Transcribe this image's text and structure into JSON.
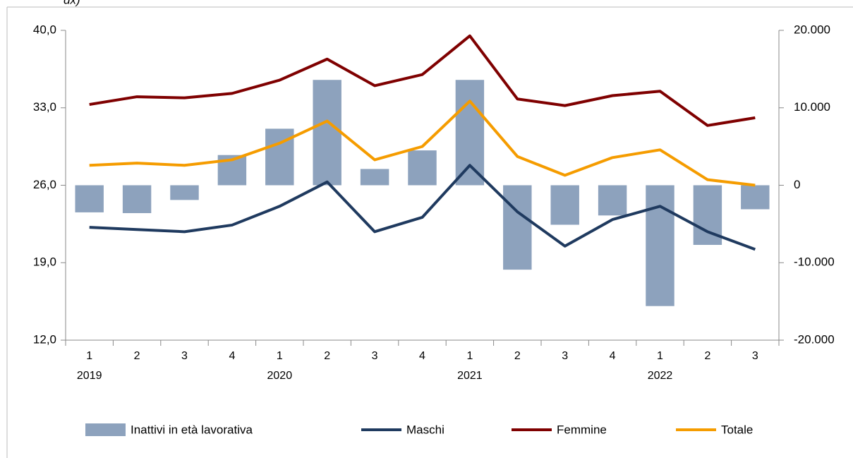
{
  "chart_data": {
    "type": "combo",
    "note": "dx)",
    "categories": [
      "1",
      "2",
      "3",
      "4",
      "1",
      "2",
      "3",
      "4",
      "1",
      "2",
      "3",
      "4",
      "1",
      "2",
      "3"
    ],
    "groups": [
      "2019",
      null,
      null,
      null,
      "2020",
      null,
      null,
      null,
      "2021",
      null,
      null,
      null,
      "2022",
      null,
      null
    ],
    "ylim": [
      12,
      40
    ],
    "yticks": [
      {
        "value": 12,
        "label": "12,0"
      },
      {
        "value": 19,
        "label": "19,0"
      },
      {
        "value": 26,
        "label": "26,0"
      },
      {
        "value": 33,
        "label": "33,0"
      },
      {
        "value": 40,
        "label": "40,0"
      }
    ],
    "y2lim": [
      -20000,
      20000
    ],
    "y2ticks": [
      {
        "value": -20000,
        "label": "-20.000"
      },
      {
        "value": -10000,
        "label": "-10.000"
      },
      0,
      {
        "value": 10000,
        "label": "10.000"
      },
      {
        "value": 20000,
        "label": "20.000"
      }
    ],
    "grid": false,
    "legend": "bottom",
    "series": [
      {
        "name": "Inattivi in età lavorativa",
        "type": "bar",
        "axis": "y2",
        "color": "#8da2bd",
        "values": [
          -3500,
          -3600,
          -1900,
          3900,
          7300,
          13600,
          2100,
          4500,
          13600,
          -10900,
          -5100,
          -3900,
          -15600,
          -7700,
          -3100
        ]
      },
      {
        "name": "Maschi",
        "type": "line",
        "color": "#1f3a5f",
        "values": [
          22.2,
          22.0,
          21.8,
          22.4,
          24.1,
          26.3,
          21.8,
          23.1,
          27.8,
          23.6,
          20.5,
          22.9,
          24.1,
          21.8,
          20.2
        ]
      },
      {
        "name": "Femmine",
        "type": "line",
        "color": "#7f0000",
        "values": [
          33.3,
          34.0,
          33.9,
          34.3,
          35.5,
          37.4,
          35.0,
          36.0,
          39.5,
          33.8,
          33.2,
          34.1,
          34.5,
          31.4,
          32.1
        ]
      },
      {
        "name": "Totale",
        "type": "line",
        "color": "#f59c00",
        "values": [
          27.8,
          28.0,
          27.8,
          28.3,
          29.8,
          31.8,
          28.3,
          29.5,
          33.6,
          28.6,
          26.9,
          28.5,
          29.2,
          26.5,
          26.0
        ]
      }
    ]
  }
}
